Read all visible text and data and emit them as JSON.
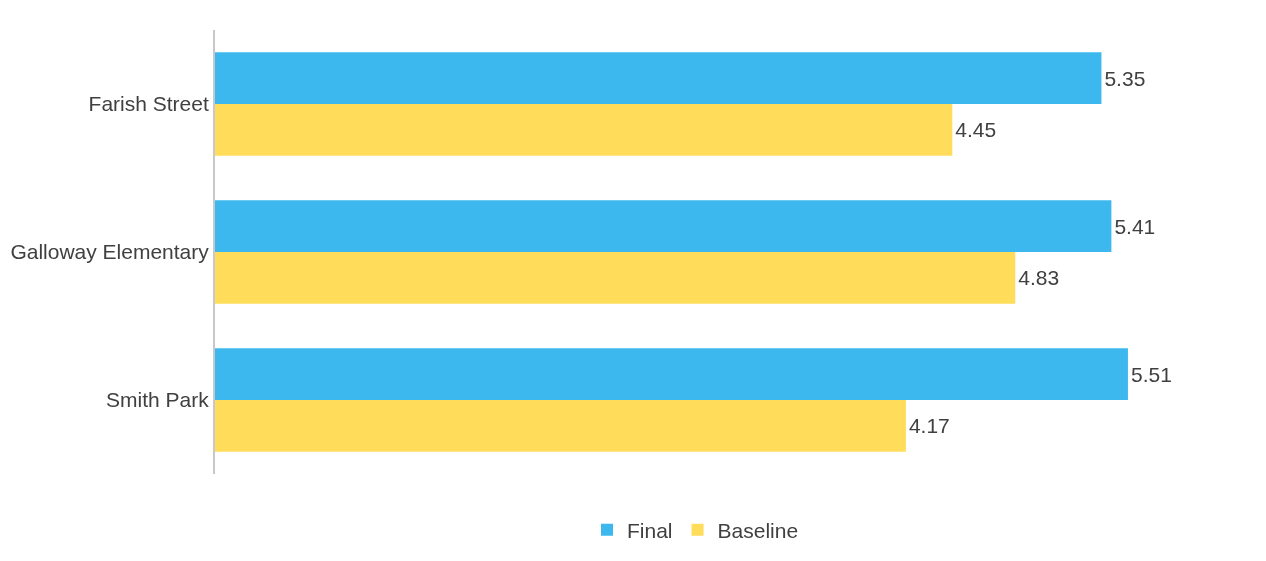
{
  "chart_data": {
    "type": "bar",
    "orientation": "horizontal",
    "categories": [
      "Farish Street",
      "Galloway Elementary",
      "Smith Park"
    ],
    "series": [
      {
        "name": "Final",
        "color": "#3db8ef",
        "values": [
          5.35,
          5.41,
          5.51
        ]
      },
      {
        "name": "Baseline",
        "color": "#ffdd5a",
        "values": [
          4.45,
          4.83,
          4.17
        ]
      }
    ],
    "data_labels": true,
    "tick_labels": "y",
    "legend": "bottom"
  }
}
